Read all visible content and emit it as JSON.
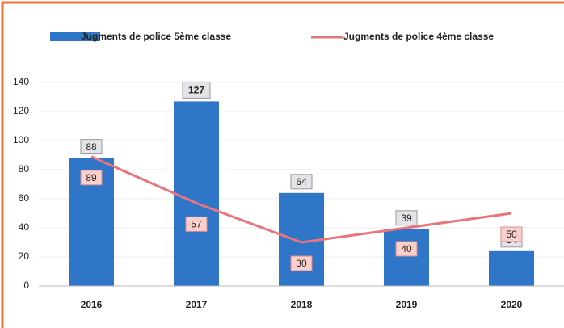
{
  "chart_data": {
    "type": "bar",
    "categories": [
      "2016",
      "2017",
      "2018",
      "2019",
      "2020"
    ],
    "series": [
      {
        "name": "Jugments de police 5ème classe",
        "type": "bar",
        "color": "#2f76c8",
        "values": [
          88,
          127,
          64,
          39,
          24
        ]
      },
      {
        "name": "Jugments de police 4ème classe",
        "type": "line",
        "color": "#e8747c",
        "values": [
          89,
          57,
          30,
          40,
          50
        ]
      }
    ],
    "ylim": [
      0,
      140
    ],
    "yticks": [
      0,
      20,
      40,
      60,
      80,
      100,
      120,
      140
    ],
    "grid": true,
    "legend": "top"
  }
}
